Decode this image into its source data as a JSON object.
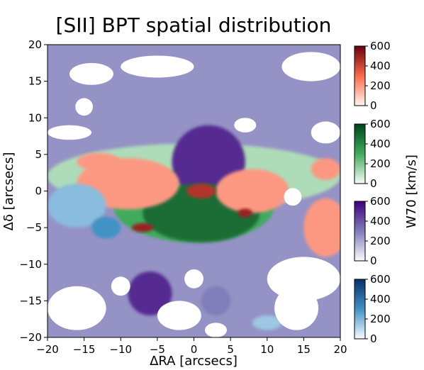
{
  "chart_data": {
    "type": "heatmap",
    "title": "[SII] BPT spatial distribution",
    "xlabel": "ΔRA [arcsecs]",
    "ylabel": "Δδ [arcsecs]",
    "xlim": [
      -20,
      20
    ],
    "ylim": [
      -20,
      20
    ],
    "xticks": [
      -20,
      -15,
      -10,
      -5,
      0,
      5,
      10,
      15,
      20
    ],
    "yticks": [
      -20,
      -15,
      -10,
      -5,
      0,
      5,
      10,
      15,
      20
    ],
    "colorbar_label": "W70 [km/s]",
    "colorbars": [
      {
        "name": "Reds",
        "color_low": "#fff5f0",
        "color_mid": "#fb6a4a",
        "color_high": "#67000d",
        "range": [
          0,
          600
        ],
        "ticks": [
          0,
          200,
          400,
          600
        ]
      },
      {
        "name": "Greens",
        "color_low": "#f7fcf5",
        "color_mid": "#41ab5d",
        "color_high": "#00441b",
        "range": [
          0,
          600
        ],
        "ticks": [
          0,
          200,
          400,
          600
        ]
      },
      {
        "name": "Purples",
        "color_low": "#fcfbfd",
        "color_mid": "#807dba",
        "color_high": "#3f007d",
        "range": [
          0,
          600
        ],
        "ticks": [
          0,
          200,
          400,
          600
        ]
      },
      {
        "name": "Blues",
        "color_low": "#f7fbff",
        "color_mid": "#4292c6",
        "color_high": "#08306b",
        "range": [
          0,
          600
        ],
        "ticks": [
          0,
          200,
          400,
          600
        ]
      }
    ],
    "regions": [
      {
        "class": "Purples",
        "shape": "background",
        "x": 0,
        "y": 0,
        "w70": 250
      },
      {
        "class": "Greens",
        "shape": "ellipse",
        "x": 0,
        "y": 2,
        "rx": 20,
        "ry": 4.5,
        "w70": 120
      },
      {
        "class": "Greens",
        "shape": "ellipse",
        "x": 0,
        "y": -2,
        "rx": 11,
        "ry": 5,
        "w70": 300
      },
      {
        "class": "Purples",
        "shape": "ellipse",
        "x": 2,
        "y": 4,
        "rx": 5,
        "ry": 5,
        "w70": 500
      },
      {
        "class": "Greens",
        "shape": "ellipse",
        "x": 1,
        "y": -3,
        "rx": 8,
        "ry": 4,
        "w70": 480
      },
      {
        "class": "Reds",
        "shape": "ellipse",
        "x": -9,
        "y": 1,
        "rx": 7,
        "ry": 3.5,
        "w70": 200
      },
      {
        "class": "Reds",
        "shape": "ellipse",
        "x": -13,
        "y": 4,
        "rx": 3,
        "ry": 1.2,
        "w70": 200
      },
      {
        "class": "Reds",
        "shape": "ellipse",
        "x": 8,
        "y": 0,
        "rx": 5,
        "ry": 3,
        "w70": 200
      },
      {
        "class": "Reds",
        "shape": "ellipse",
        "x": 18,
        "y": -5,
        "rx": 3,
        "ry": 4,
        "w70": 200
      },
      {
        "class": "Reds",
        "shape": "ellipse",
        "x": 18,
        "y": 3,
        "rx": 2,
        "ry": 1.5,
        "w70": 200
      },
      {
        "class": "Reds",
        "shape": "ellipse",
        "x": 1,
        "y": 0,
        "rx": 2,
        "ry": 1,
        "w70": 450
      },
      {
        "class": "Reds",
        "shape": "ellipse",
        "x": -7,
        "y": -5,
        "rx": 1.5,
        "ry": 0.6,
        "w70": 500
      },
      {
        "class": "Reds",
        "shape": "ellipse",
        "x": 7,
        "y": -3,
        "rx": 1,
        "ry": 0.6,
        "w70": 500
      },
      {
        "class": "Blues",
        "shape": "ellipse",
        "x": -16,
        "y": -2,
        "rx": 4,
        "ry": 3,
        "w70": 180
      },
      {
        "class": "Blues",
        "shape": "ellipse",
        "x": -12,
        "y": -5,
        "rx": 2,
        "ry": 1.5,
        "w70": 300
      },
      {
        "class": "Blues",
        "shape": "ellipse",
        "x": 10,
        "y": -18,
        "rx": 2,
        "ry": 1,
        "w70": 150
      },
      {
        "class": "Purples",
        "shape": "ellipse",
        "x": -6,
        "y": -14,
        "rx": 3,
        "ry": 3,
        "w70": 500
      },
      {
        "class": "Purples",
        "shape": "ellipse",
        "x": 3,
        "y": -15,
        "rx": 2,
        "ry": 2,
        "w70": 300
      }
    ],
    "masked_regions": [
      {
        "x": -14,
        "y": 16,
        "rx": 3,
        "ry": 1.5
      },
      {
        "x": -5,
        "y": 17,
        "rx": 5,
        "ry": 1.5
      },
      {
        "x": -15,
        "y": 11.5,
        "r": 1.2
      },
      {
        "x": 13.5,
        "y": -0.8,
        "r": 1.2
      },
      {
        "x": -10,
        "y": -13,
        "r": 1.3
      },
      {
        "x": 0,
        "y": -12,
        "r": 1.3
      },
      {
        "x": -16,
        "y": -16,
        "rx": 4,
        "ry": 3
      },
      {
        "x": -2,
        "y": -17,
        "rx": 3,
        "ry": 2
      },
      {
        "x": 3,
        "y": -19,
        "rx": 1.5,
        "ry": 1
      },
      {
        "x": 15,
        "y": -12,
        "rx": 5,
        "ry": 3
      },
      {
        "x": 14,
        "y": -16,
        "rx": 3,
        "ry": 3
      },
      {
        "x": 16,
        "y": 17,
        "rx": 4,
        "ry": 2
      },
      {
        "x": 18,
        "y": 8,
        "rx": 2,
        "ry": 1.5
      },
      {
        "x": 7,
        "y": 9,
        "rx": 1.5,
        "ry": 1
      },
      {
        "x": -17,
        "y": 8,
        "rx": 3,
        "ry": 1
      }
    ]
  }
}
